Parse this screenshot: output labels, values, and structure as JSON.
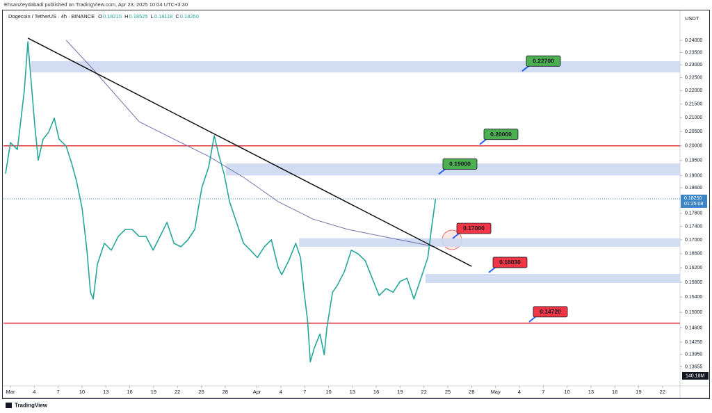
{
  "header": {
    "author_line": "EhsanZeydabadi published on TradingView.com, Apr 23, 2025 10:04 UTC+3:30",
    "symbol": "Dogecoin / TetherUS · 4h · BINANCE",
    "ohlc": [
      {
        "key": "O",
        "value": "0.18215"
      },
      {
        "key": "H",
        "value": "0.18525"
      },
      {
        "key": "L",
        "value": "0.18118"
      },
      {
        "key": "C",
        "value": "0.18250"
      }
    ],
    "brand": "TradingView"
  },
  "chart_data": {
    "type": "line",
    "currency": "USDT",
    "log_scale": true,
    "grid": false,
    "color": "#26a69a",
    "x": [
      -0.61,
      0,
      0.87,
      1.75,
      2.19,
      2.62,
      3.06,
      3.5,
      4.11,
      4.81,
      5.51,
      6.12,
      7.0,
      7.7,
      8.31,
      9.01,
      9.62,
      10.06,
      10.41,
      10.94,
      11.81,
      12.69,
      13.56,
      14.44,
      15.31,
      16.19,
      17.06,
      17.94,
      18.81,
      19.69,
      20.56,
      21.43,
      22.31,
      23.18,
      24.06,
      24.93,
      25.63,
      26.25,
      26.86,
      27.56,
      28.43,
      29.31,
      30.18,
      31.06,
      31.93,
      32.81,
      33.68,
      34.12,
      35.0,
      35.87,
      36.48,
      36.92,
      37.36,
      37.71,
      38.23,
      38.93,
      39.46,
      39.81,
      40.51,
      41.12,
      42.0,
      42.87,
      43.74,
      44.62,
      45.49,
      46.37,
      47.24,
      48.12,
      48.99,
      49.87,
      50.74,
      51.62,
      52.49,
      52.93,
      53.46
    ],
    "values": [
      0.1906,
      0.2011,
      0.1987,
      0.2201,
      0.2394,
      0.2228,
      0.2073,
      0.1951,
      0.2023,
      0.2048,
      0.2098,
      0.2023,
      0.1999,
      0.194,
      0.1882,
      0.1795,
      0.167,
      0.1553,
      0.1535,
      0.163,
      0.169,
      0.167,
      0.171,
      0.1731,
      0.1731,
      0.171,
      0.171,
      0.167,
      0.171,
      0.1752,
      0.169,
      0.168,
      0.17,
      0.1731,
      0.186,
      0.1928,
      0.2035,
      0.1964,
      0.1906,
      0.1816,
      0.1752,
      0.169,
      0.167,
      0.1649,
      0.168,
      0.17,
      0.162,
      0.1601,
      0.164,
      0.169,
      0.1649,
      0.1553,
      0.148,
      0.1377,
      0.1411,
      0.1445,
      0.1394,
      0.1463,
      0.1553,
      0.1572,
      0.161,
      0.167,
      0.1659,
      0.164,
      0.1591,
      0.1544,
      0.1563,
      0.1553,
      0.1582,
      0.1591,
      0.1535,
      0.1591,
      0.1649,
      0.1731,
      0.1825
    ],
    "xlim": [
      -0.875,
      84.2
    ],
    "xticks": [
      {
        "value": 0,
        "label": "Mar"
      },
      {
        "value": 3,
        "label": "4"
      },
      {
        "value": 6,
        "label": "7"
      },
      {
        "value": 9,
        "label": "10"
      },
      {
        "value": 12,
        "label": "13"
      },
      {
        "value": 15,
        "label": "16"
      },
      {
        "value": 18,
        "label": "19"
      },
      {
        "value": 21,
        "label": "22"
      },
      {
        "value": 24,
        "label": "25"
      },
      {
        "value": 27,
        "label": "28"
      },
      {
        "value": 31,
        "label": "Apr"
      },
      {
        "value": 34,
        "label": "4"
      },
      {
        "value": 37,
        "label": "7"
      },
      {
        "value": 40,
        "label": "10"
      },
      {
        "value": 43,
        "label": "13"
      },
      {
        "value": 46,
        "label": "16"
      },
      {
        "value": 49,
        "label": "19"
      },
      {
        "value": 52,
        "label": "22"
      },
      {
        "value": 55,
        "label": "25"
      },
      {
        "value": 58,
        "label": "28"
      },
      {
        "value": 61,
        "label": "May"
      },
      {
        "value": 64,
        "label": "4"
      },
      {
        "value": 67,
        "label": "7"
      },
      {
        "value": 70,
        "label": "10"
      },
      {
        "value": 73,
        "label": "13"
      },
      {
        "value": 76,
        "label": "16"
      },
      {
        "value": 79,
        "label": "19"
      },
      {
        "value": 82,
        "label": "22"
      }
    ],
    "ylim": [
      0.1321,
      0.2527
    ],
    "yticks": [
      {
        "value": 0.24,
        "label": "0.24000"
      },
      {
        "value": 0.235,
        "label": "0.23500"
      },
      {
        "value": 0.23,
        "label": "0.23000"
      },
      {
        "value": 0.225,
        "label": "0.22500"
      },
      {
        "value": 0.22,
        "label": "0.22000"
      },
      {
        "value": 0.215,
        "label": "0.21500"
      },
      {
        "value": 0.21,
        "label": "0.21000"
      },
      {
        "value": 0.205,
        "label": "0.20500"
      },
      {
        "value": 0.2,
        "label": "0.20000"
      },
      {
        "value": 0.195,
        "label": "0.19500"
      },
      {
        "value": 0.19,
        "label": "0.19000"
      },
      {
        "value": 0.186,
        "label": "0.18600"
      },
      {
        "value": 0.178,
        "label": "0.17800"
      },
      {
        "value": 0.174,
        "label": "0.17400"
      },
      {
        "value": 0.17,
        "label": "0.17000"
      },
      {
        "value": 0.166,
        "label": "0.16600"
      },
      {
        "value": 0.162,
        "label": "0.16200"
      },
      {
        "value": 0.158,
        "label": "0.15800"
      },
      {
        "value": 0.154,
        "label": "0.15400"
      },
      {
        "value": 0.15,
        "label": "0.15000"
      },
      {
        "value": 0.146,
        "label": "0.14600"
      },
      {
        "value": 0.1425,
        "label": "0.14250"
      },
      {
        "value": 0.1395,
        "label": "0.13950"
      },
      {
        "value": 0.13655,
        "label": "0.13655"
      }
    ],
    "last_price": {
      "value": 0.1825,
      "label": "0.18250",
      "countdown": "01:25:08",
      "color": "#3d86c6"
    },
    "volume_label": "140.18M",
    "trendline": {
      "x": [
        2.19,
        58.0
      ],
      "values": [
        0.2409,
        0.1624
      ],
      "color": "#111111"
    },
    "moving_average": {
      "x": [
        7.0,
        10.06,
        16.19,
        21.43,
        24.93,
        29.31,
        33.68,
        38.06,
        42.44,
        46.81,
        51.18,
        53.37
      ],
      "values": [
        0.24,
        0.2294,
        0.2085,
        0.2011,
        0.1964,
        0.1894,
        0.1816,
        0.1762,
        0.1731,
        0.171,
        0.169,
        0.168
      ],
      "color": "#6f71a8"
    },
    "zone_color": "#cdd9f3",
    "zones": [
      {
        "low": 0.227,
        "high": 0.2315,
        "start": 2.62
      },
      {
        "low": 0.19,
        "high": 0.194,
        "start": 27.1
      },
      {
        "low": 0.168,
        "high": 0.1705,
        "start": 36.3
      },
      {
        "low": 0.1578,
        "high": 0.1603,
        "start": 52.2
      }
    ],
    "lines": [
      {
        "value": 0.2,
        "color": "#e0303a"
      },
      {
        "value": 0.1472,
        "color": "#e0303a"
      }
    ],
    "levels": [
      {
        "value": 0.227,
        "label": "0.22700",
        "color": "#4caf50"
      },
      {
        "value": 0.2,
        "label": "0.20000",
        "color": "#4caf50"
      },
      {
        "value": 0.19,
        "label": "0.19000",
        "color": "#4caf50"
      },
      {
        "value": 0.17,
        "label": "0.17000",
        "color": "#f23645"
      },
      {
        "value": 0.1603,
        "label": "0.16030",
        "color": "#f23645"
      },
      {
        "value": 0.1472,
        "label": "0.14720",
        "color": "#f23645"
      }
    ]
  }
}
